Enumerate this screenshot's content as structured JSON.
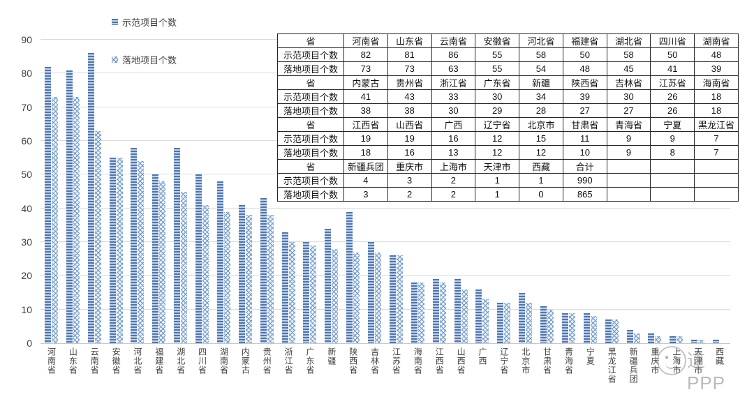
{
  "legend": {
    "series1_label": "示范项目个数",
    "series2_label": "落地项目个数"
  },
  "colors": {
    "series1_stripe_dark": "#4e76ae",
    "series1_stripe_light": "#c2d0e6",
    "series2_line": "#6d95c2",
    "series2_bg": "#eaf1f8",
    "grid": "#dcdcdc",
    "text": "#404040",
    "table_border": "#262626",
    "watermark": "#8c8c8c"
  },
  "chart_data": {
    "type": "bar",
    "title": "",
    "xlabel": "",
    "ylabel": "",
    "ylim": [
      0,
      90
    ],
    "yticks": [
      0,
      10,
      20,
      30,
      40,
      50,
      60,
      70,
      80,
      90
    ],
    "grid": true,
    "legend_position": "top-left",
    "categories": [
      "河南省",
      "山东省",
      "云南省",
      "安徽省",
      "河北省",
      "福建省",
      "湖北省",
      "四川省",
      "湖南省",
      "内蒙古",
      "贵州省",
      "浙江省",
      "广东省",
      "新疆",
      "陕西省",
      "吉林省",
      "江苏省",
      "海南省",
      "江西省",
      "山西省",
      "广西",
      "辽宁省",
      "北京市",
      "甘肃省",
      "青海省",
      "宁夏",
      "黑龙江省",
      "新疆兵团",
      "重庆市",
      "上海市",
      "天津市",
      "西藏"
    ],
    "series": [
      {
        "name": "示范项目个数",
        "values": [
          82,
          81,
          86,
          55,
          58,
          50,
          58,
          50,
          48,
          41,
          43,
          33,
          30,
          34,
          39,
          30,
          26,
          18,
          19,
          19,
          16,
          12,
          15,
          11,
          9,
          9,
          7,
          4,
          3,
          2,
          1,
          1
        ]
      },
      {
        "name": "落地项目个数",
        "values": [
          73,
          73,
          63,
          55,
          54,
          48,
          45,
          41,
          39,
          38,
          38,
          30,
          29,
          28,
          27,
          27,
          26,
          18,
          18,
          16,
          13,
          12,
          12,
          10,
          9,
          8,
          7,
          3,
          2,
          2,
          1,
          0
        ]
      }
    ]
  },
  "table": {
    "row_labels": [
      "省",
      "示范项目个数",
      "落地项目个数"
    ],
    "sections": [
      {
        "provinces": [
          "河南省",
          "山东省",
          "云南省",
          "安徽省",
          "河北省",
          "福建省",
          "湖北省",
          "四川省",
          "湖南省"
        ],
        "demo": [
          "82",
          "81",
          "86",
          "55",
          "58",
          "50",
          "58",
          "50",
          "48"
        ],
        "landed": [
          "73",
          "73",
          "63",
          "55",
          "54",
          "48",
          "45",
          "41",
          "39"
        ]
      },
      {
        "provinces": [
          "内蒙古",
          "贵州省",
          "浙江省",
          "广东省",
          "新疆",
          "陕西省",
          "吉林省",
          "江苏省",
          "海南省"
        ],
        "demo": [
          "41",
          "43",
          "33",
          "30",
          "34",
          "39",
          "30",
          "26",
          "18"
        ],
        "landed": [
          "38",
          "38",
          "30",
          "29",
          "28",
          "27",
          "27",
          "26",
          "18"
        ]
      },
      {
        "provinces": [
          "江西省",
          "山西省",
          "广西",
          "辽宁省",
          "北京市",
          "甘肃省",
          "青海省",
          "宁夏",
          "黑龙江省"
        ],
        "demo": [
          "19",
          "19",
          "16",
          "12",
          "15",
          "11",
          "9",
          "9",
          "7"
        ],
        "landed": [
          "18",
          "16",
          "13",
          "12",
          "12",
          "10",
          "9",
          "8",
          "7"
        ]
      },
      {
        "provinces": [
          "新疆兵团",
          "重庆市",
          "上海市",
          "天津市",
          "西藏",
          "合计",
          "",
          "",
          ""
        ],
        "demo": [
          "4",
          "3",
          "2",
          "1",
          "1",
          "990",
          "",
          "",
          ""
        ],
        "landed": [
          "3",
          "2",
          "2",
          "1",
          "0",
          "865",
          "",
          "",
          ""
        ]
      }
    ]
  },
  "watermark": {
    "text": "道PPP"
  }
}
